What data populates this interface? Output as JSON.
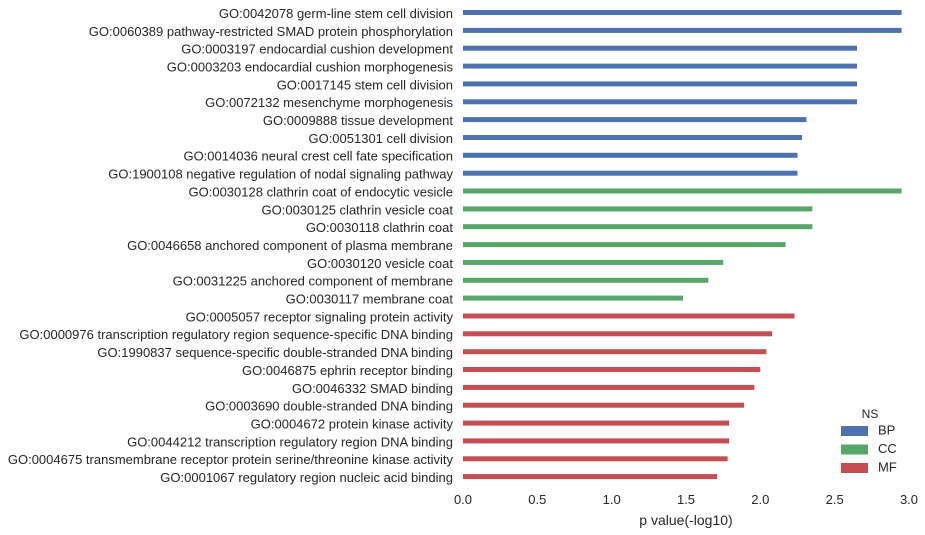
{
  "chart_data": {
    "type": "bar",
    "orientation": "horizontal",
    "xlabel": "p value(-log10)",
    "ylabel": "",
    "xlim": [
      0,
      3.0
    ],
    "xticks": [
      "0.0",
      "0.5",
      "1.0",
      "1.5",
      "2.0",
      "2.5",
      "3.0"
    ],
    "grid": false,
    "legend": {
      "title": "NS",
      "placement": "bottom-right",
      "entries": [
        {
          "name": "BP",
          "color": "#4c72b0"
        },
        {
          "name": "CC",
          "color": "#55a868"
        },
        {
          "name": "MF",
          "color": "#c44e52"
        }
      ]
    },
    "bars": [
      {
        "label": "GO:0042078 germ-line stem cell division",
        "value": 2.95,
        "group": "BP"
      },
      {
        "label": "GO:0060389 pathway-restricted SMAD protein phosphorylation",
        "value": 2.95,
        "group": "BP"
      },
      {
        "label": "GO:0003197 endocardial cushion development",
        "value": 2.65,
        "group": "BP"
      },
      {
        "label": "GO:0003203 endocardial cushion morphogenesis",
        "value": 2.65,
        "group": "BP"
      },
      {
        "label": "GO:0017145 stem cell division",
        "value": 2.65,
        "group": "BP"
      },
      {
        "label": "GO:0072132 mesenchyme morphogenesis",
        "value": 2.65,
        "group": "BP"
      },
      {
        "label": "GO:0009888 tissue development",
        "value": 2.31,
        "group": "BP"
      },
      {
        "label": "GO:0051301 cell division",
        "value": 2.28,
        "group": "BP"
      },
      {
        "label": "GO:0014036 neural crest cell fate specification",
        "value": 2.25,
        "group": "BP"
      },
      {
        "label": "GO:1900108 negative regulation of nodal signaling pathway",
        "value": 2.25,
        "group": "BP"
      },
      {
        "label": "GO:0030128 clathrin coat of endocytic vesicle",
        "value": 2.95,
        "group": "CC"
      },
      {
        "label": "GO:0030125 clathrin vesicle coat",
        "value": 2.35,
        "group": "CC"
      },
      {
        "label": "GO:0030118 clathrin coat",
        "value": 2.35,
        "group": "CC"
      },
      {
        "label": "GO:0046658 anchored component of plasma membrane",
        "value": 2.17,
        "group": "CC"
      },
      {
        "label": "GO:0030120 vesicle coat",
        "value": 1.75,
        "group": "CC"
      },
      {
        "label": "GO:0031225 anchored component of membrane",
        "value": 1.65,
        "group": "CC"
      },
      {
        "label": "GO:0030117 membrane coat",
        "value": 1.48,
        "group": "CC"
      },
      {
        "label": "GO:0005057 receptor signaling protein activity",
        "value": 2.23,
        "group": "MF"
      },
      {
        "label": "GO:0000976 transcription regulatory region sequence-specific DNA binding",
        "value": 2.08,
        "group": "MF"
      },
      {
        "label": "GO:1990837 sequence-specific double-stranded DNA binding",
        "value": 2.04,
        "group": "MF"
      },
      {
        "label": "GO:0046875 ephrin receptor binding",
        "value": 2.0,
        "group": "MF"
      },
      {
        "label": "GO:0046332 SMAD binding",
        "value": 1.96,
        "group": "MF"
      },
      {
        "label": "GO:0003690 double-stranded DNA binding",
        "value": 1.89,
        "group": "MF"
      },
      {
        "label": "GO:0004672 protein kinase activity",
        "value": 1.79,
        "group": "MF"
      },
      {
        "label": "GO:0044212 transcription regulatory region DNA binding",
        "value": 1.79,
        "group": "MF"
      },
      {
        "label": "GO:0004675 transmembrane receptor protein serine/threonine kinase activity",
        "value": 1.78,
        "group": "MF"
      },
      {
        "label": "GO:0001067 regulatory region nucleic acid binding",
        "value": 1.71,
        "group": "MF"
      }
    ]
  }
}
